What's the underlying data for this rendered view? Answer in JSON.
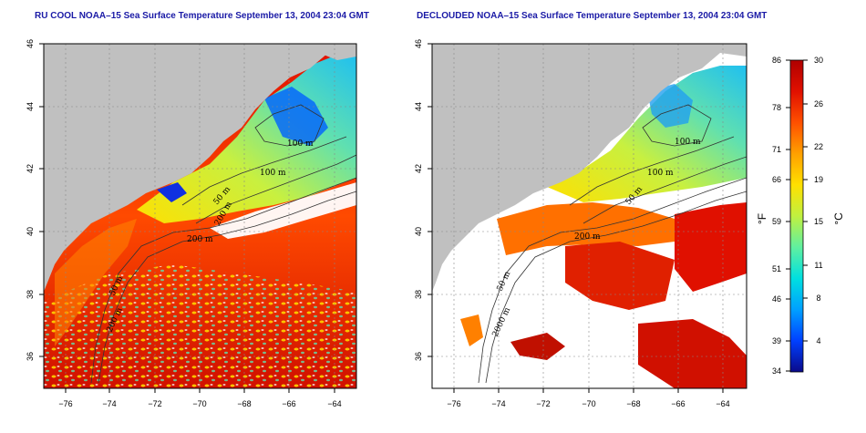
{
  "maps": [
    {
      "id": "left",
      "title": "RU COOL NOAA–15 Sea Surface Temperature September 13, 2004 23:04 GMT",
      "contour_labels": [
        "100 m",
        "100 m",
        "50 m",
        "200 m",
        "200 m",
        "50 m",
        "200 m"
      ]
    },
    {
      "id": "right",
      "title": "DECLOUDED NOAA–15 Sea Surface Temperature September 13, 2004 23:04 GMT",
      "contour_labels": [
        "100 m",
        "100 m",
        "50 m",
        "200 m",
        "50 m",
        "2000 m"
      ]
    }
  ],
  "axes": {
    "lon_ticks": [
      "−76",
      "−74",
      "−72",
      "−70",
      "−68",
      "−66",
      "−64"
    ],
    "lat_ticks": [
      "36",
      "38",
      "40",
      "42",
      "44",
      "46"
    ]
  },
  "colorbar": {
    "unit_left": "°F",
    "unit_right": "°C",
    "ticks_f": [
      "86",
      "78",
      "71",
      "66",
      "59",
      "51",
      "46",
      "39",
      "34"
    ],
    "ticks_c": [
      "30",
      "26",
      "22",
      "19",
      "15",
      "11",
      "8",
      "4"
    ],
    "colors": [
      "#0a0a8a",
      "#0040ff",
      "#00a0ff",
      "#00e0e0",
      "#60f0a0",
      "#c0f040",
      "#ffe000",
      "#ffa000",
      "#ff5000",
      "#e01000",
      "#b00000"
    ]
  },
  "colors": {
    "land": "#c0c0c0",
    "cloud": "#ffffff",
    "title": "#1a1aa6"
  }
}
